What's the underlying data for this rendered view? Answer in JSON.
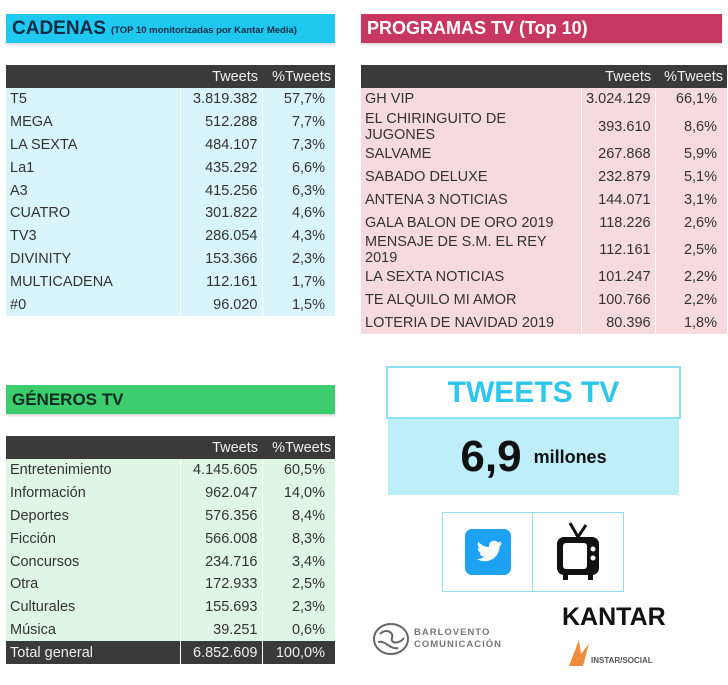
{
  "cadenas": {
    "title": "CADENAS",
    "subtitle": "(TOP 10 monitorizadas por Kantar Media)",
    "col_tweets": "Tweets",
    "col_pct": "%Tweets",
    "rows": [
      [
        "T5",
        "3.819.382",
        "57,7%"
      ],
      [
        "MEGA",
        "512.288",
        "7,7%"
      ],
      [
        "LA SEXTA",
        "484.107",
        "7,3%"
      ],
      [
        "La1",
        "435.292",
        "6,6%"
      ],
      [
        "A3",
        "415.256",
        "6,3%"
      ],
      [
        "CUATRO",
        "301.822",
        "4,6%"
      ],
      [
        "TV3",
        "286.054",
        "4,3%"
      ],
      [
        "DIVINITY",
        "153.366",
        "2,3%"
      ],
      [
        "MULTICADENA",
        "112.161",
        "1,7%"
      ],
      [
        "#0",
        "96.020",
        "1,5%"
      ]
    ]
  },
  "programas": {
    "title": "PROGRAMAS TV (Top 10)",
    "col_tweets": "Tweets",
    "col_pct": "%Tweets",
    "rows": [
      [
        "GH VIP",
        "3.024.129",
        "66,1%"
      ],
      [
        "EL CHIRINGUITO DE JUGONES",
        "393.610",
        "8,6%"
      ],
      [
        "SALVAME",
        "267.868",
        "5,9%"
      ],
      [
        "SABADO DELUXE",
        "232.879",
        "5,1%"
      ],
      [
        "ANTENA 3 NOTICIAS",
        "144.071",
        "3,1%"
      ],
      [
        "GALA BALON DE ORO 2019",
        "118.226",
        "2,6%"
      ],
      [
        "MENSAJE DE S.M. EL REY 2019",
        "112.161",
        "2,5%"
      ],
      [
        "LA SEXTA NOTICIAS",
        "101.247",
        "2,2%"
      ],
      [
        "TE ALQUILO MI AMOR",
        "100.766",
        "2,2%"
      ],
      [
        "LOTERIA DE NAVIDAD 2019",
        "80.396",
        "1,8%"
      ]
    ]
  },
  "generos": {
    "title": "GÉNEROS TV",
    "col_tweets": "Tweets",
    "col_pct": "%Tweets",
    "rows": [
      [
        "Entretenimiento",
        "4.145.605",
        "60,5%"
      ],
      [
        "Información",
        "962.047",
        "14,0%"
      ],
      [
        "Deportes",
        "576.356",
        "8,4%"
      ],
      [
        "Ficción",
        "566.008",
        "8,3%"
      ],
      [
        "Concursos",
        "234.716",
        "3,4%"
      ],
      [
        "Otra",
        "172.933",
        "2,5%"
      ],
      [
        "Culturales",
        "155.693",
        "2,3%"
      ],
      [
        "Música",
        "39.251",
        "0,6%"
      ]
    ],
    "total": [
      "Total general",
      "6.852.609",
      "100,0%"
    ]
  },
  "summary": {
    "title": "TWEETS TV",
    "value": "6,9",
    "unit": "millones"
  },
  "logos": {
    "barlovento_1": "BARLOVENTO",
    "barlovento_2": "COMUNICACIÓN",
    "kantar": "KANTAR",
    "instar": "INSTAR/SOCIAL"
  },
  "colors": {
    "cyan": "#1ec8ee",
    "pink": "#c8375f",
    "green": "#3dcc6e",
    "dark": "#3a3a3a"
  }
}
